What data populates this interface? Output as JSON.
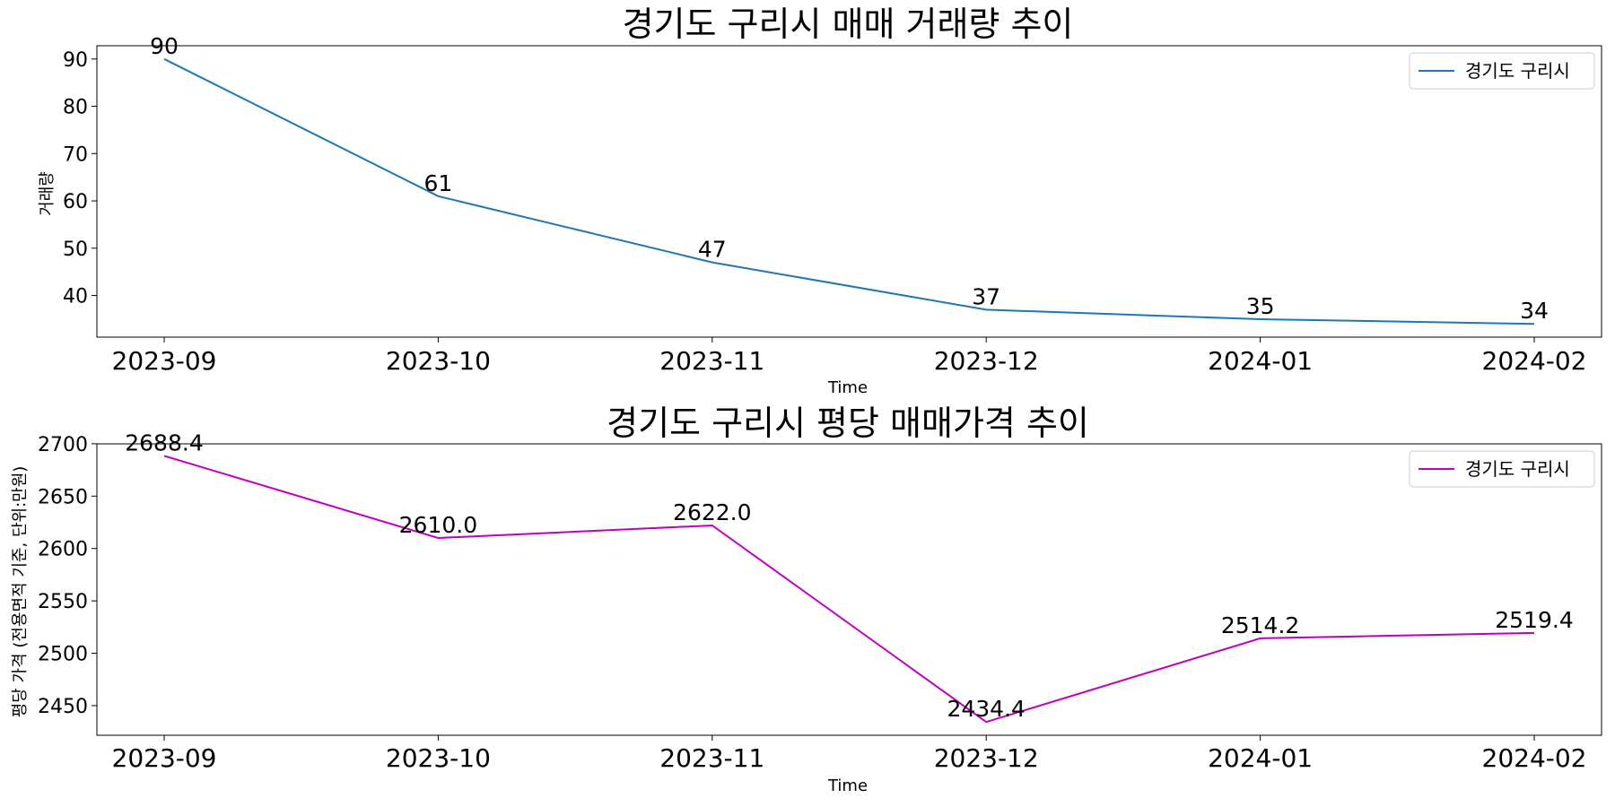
{
  "chart_data": [
    {
      "type": "line",
      "title": "경기도 구리시 매매 거래량 추이",
      "xlabel": "Time",
      "ylabel": "거래량",
      "categories": [
        "2023-09",
        "2023-10",
        "2023-11",
        "2023-12",
        "2024-01",
        "2024-02"
      ],
      "series": [
        {
          "name": "경기도 구리시",
          "color": "#1f77b4",
          "values": [
            90,
            61,
            47,
            37,
            35,
            34
          ]
        }
      ],
      "value_labels": [
        "90",
        "61",
        "47",
        "37",
        "35",
        "34"
      ],
      "ylim": [
        31.2,
        92.8
      ],
      "yticks": [
        40,
        50,
        60,
        70,
        80,
        90
      ],
      "legend": "top-right"
    },
    {
      "type": "line",
      "title": "경기도 구리시 평당 매매가격 추이",
      "xlabel": "Time",
      "ylabel": "평당 가격 (전용면적 기준, 단위:만원)",
      "categories": [
        "2023-09",
        "2023-10",
        "2023-11",
        "2023-12",
        "2024-01",
        "2024-02"
      ],
      "series": [
        {
          "name": "경기도 구리시",
          "color": "#bf00bf",
          "values": [
            2688.4,
            2610.0,
            2622.0,
            2434.4,
            2514.2,
            2519.4
          ]
        }
      ],
      "value_labels": [
        "2688.4",
        "2610.0",
        "2622.0",
        "2434.4",
        "2514.2",
        "2519.4"
      ],
      "ylim": [
        2421.7,
        2699.9
      ],
      "yticks": [
        2450,
        2500,
        2550,
        2600,
        2650,
        2700
      ],
      "legend": "top-right"
    }
  ]
}
